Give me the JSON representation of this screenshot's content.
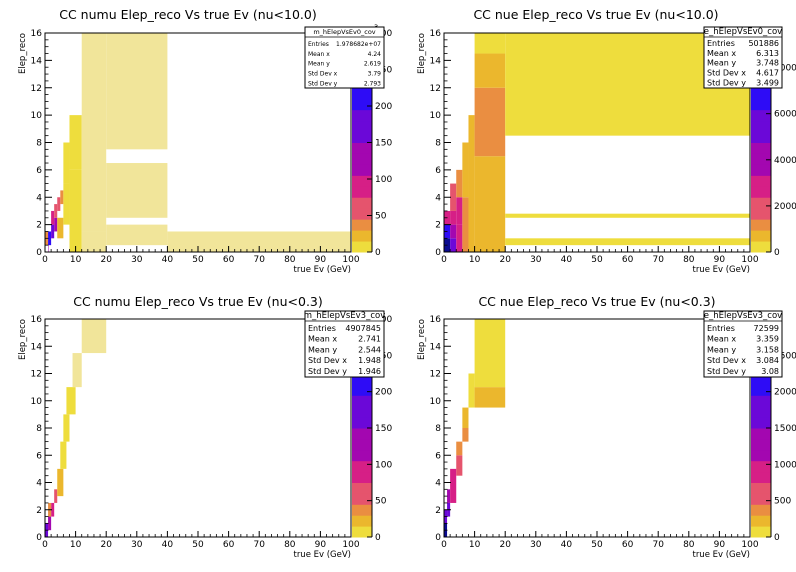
{
  "chart_data": [
    {
      "type": "heatmap",
      "title": "CC numu Elep_reco Vs true Ev (nu<10.0)",
      "xlabel": "true Ev (GeV)",
      "ylabel": "Elep_reco",
      "xlim": [
        0,
        100
      ],
      "ylim": [
        0,
        16
      ],
      "xticks": [
        0,
        10,
        20,
        30,
        40,
        50,
        60,
        70,
        80,
        90,
        100
      ],
      "yticks": [
        0,
        2,
        4,
        6,
        8,
        10,
        12,
        14,
        16
      ],
      "zticks": [
        0,
        50,
        100,
        150,
        200,
        250,
        300
      ],
      "zlim": [
        0,
        300
      ],
      "zexp": "3",
      "stats": {
        "name": "m_hElepVsEv0_cov",
        "rows": [
          [
            "Entries",
            "1.978682e+07"
          ],
          [
            "Mean x",
            "4.24"
          ],
          [
            "Mean y",
            "2.619"
          ],
          [
            "Std Dev x",
            "3.79"
          ],
          [
            "Std Dev y",
            "2.793"
          ]
        ]
      },
      "cells": [
        [
          1,
          0,
          1,
          0.5,
          120
        ],
        [
          0,
          0.5,
          1,
          1.5,
          40
        ],
        [
          1,
          0.5,
          2,
          1.5,
          210
        ],
        [
          2,
          1,
          3,
          2,
          160
        ],
        [
          3,
          1.5,
          4,
          2.5,
          110
        ],
        [
          2,
          2,
          3,
          3,
          80
        ],
        [
          3,
          2.5,
          4,
          3.5,
          70
        ],
        [
          4,
          3,
          5,
          4,
          50
        ],
        [
          5,
          3.5,
          6,
          4.5,
          30
        ],
        [
          4,
          1,
          6,
          2.5,
          15
        ],
        [
          6,
          2,
          8,
          5,
          10
        ],
        [
          6,
          5,
          8,
          8,
          6
        ],
        [
          8,
          0,
          12,
          6,
          4
        ],
        [
          8,
          6,
          12,
          10,
          8
        ],
        [
          12,
          0,
          20,
          1.5,
          2
        ],
        [
          12,
          1.5,
          20,
          16,
          1
        ],
        [
          20,
          7.5,
          40,
          16,
          1
        ],
        [
          20,
          2.5,
          40,
          6.5,
          0.5
        ],
        [
          20,
          0.5,
          40,
          2,
          1
        ],
        [
          40,
          0,
          100,
          1.5,
          0.5
        ]
      ]
    },
    {
      "type": "heatmap",
      "title": "CC nue Elep_reco Vs true Ev (nu<10.0)",
      "xlabel": "true Ev (GeV)",
      "ylabel": "Elep_reco",
      "xlim": [
        0,
        100
      ],
      "ylim": [
        0,
        16
      ],
      "xticks": [
        0,
        10,
        20,
        30,
        40,
        50,
        60,
        70,
        80,
        90,
        100
      ],
      "yticks": [
        0,
        2,
        4,
        6,
        8,
        10,
        12,
        14,
        16
      ],
      "zticks": [
        0,
        2000,
        4000,
        6000,
        8000
      ],
      "zlim": [
        0,
        9500
      ],
      "zexp": "",
      "stats": {
        "name": "e_hElepVsEv0_cov",
        "rows": [
          [
            "Entries",
            "501886"
          ],
          [
            "Mean x",
            "6.313"
          ],
          [
            "Mean y",
            "3.748"
          ],
          [
            "Std Dev x",
            "4.617"
          ],
          [
            "Std Dev y",
            "3.499"
          ]
        ]
      },
      "cells": [
        [
          0,
          0,
          2,
          1,
          9200
        ],
        [
          0,
          1,
          2,
          2,
          6500
        ],
        [
          2,
          0,
          4,
          1,
          5200
        ],
        [
          2,
          1,
          4,
          2,
          4200
        ],
        [
          2,
          2,
          4,
          3,
          3400
        ],
        [
          0,
          2,
          2,
          3,
          2500
        ],
        [
          4,
          0,
          6,
          2,
          3000
        ],
        [
          4,
          2,
          6,
          4,
          2400
        ],
        [
          2,
          3,
          4,
          5,
          1800
        ],
        [
          4,
          4,
          6,
          6,
          1200
        ],
        [
          6,
          0,
          8,
          4,
          1400
        ],
        [
          6,
          4,
          8,
          8,
          700
        ],
        [
          8,
          0,
          10,
          10,
          500
        ],
        [
          10,
          0,
          20,
          7,
          600
        ],
        [
          10,
          7,
          20,
          12,
          1000
        ],
        [
          10,
          12,
          20,
          14.5,
          650
        ],
        [
          10,
          14.5,
          20,
          16,
          150
        ],
        [
          20,
          8.5,
          100,
          16,
          250
        ],
        [
          20,
          0.5,
          100,
          1,
          200
        ],
        [
          20,
          2.5,
          100,
          2.8,
          150
        ]
      ]
    },
    {
      "type": "heatmap",
      "title": "CC numu Elep_reco Vs true Ev (nu<0.3)",
      "xlabel": "true Ev (GeV)",
      "ylabel": "Elep_reco",
      "xlim": [
        0,
        100
      ],
      "ylim": [
        0,
        16
      ],
      "xticks": [
        0,
        10,
        20,
        30,
        40,
        50,
        60,
        70,
        80,
        90,
        100
      ],
      "yticks": [
        0,
        2,
        4,
        6,
        8,
        10,
        12,
        14,
        16
      ],
      "zticks": [
        0,
        50,
        100,
        150,
        200,
        250,
        300
      ],
      "zlim": [
        0,
        300
      ],
      "zexp": "3",
      "stats": {
        "name": "m_hElepVsEv3_cov",
        "rows": [
          [
            "Entries",
            "4907845"
          ],
          [
            "Mean x",
            "2.741"
          ],
          [
            "Mean y",
            "2.544"
          ],
          [
            "Std Dev x",
            "1.948"
          ],
          [
            "Std Dev y",
            "1.946"
          ]
        ]
      },
      "cells": [
        [
          0,
          0,
          1,
          1,
          150
        ],
        [
          1,
          0.5,
          2,
          1.5,
          120
        ],
        [
          2,
          1.5,
          3,
          2.5,
          90
        ],
        [
          3,
          2.5,
          4,
          3.5,
          60
        ],
        [
          1,
          1.5,
          2,
          2.5,
          30
        ],
        [
          4,
          3,
          6,
          5,
          15
        ],
        [
          5,
          5,
          7,
          7,
          8
        ],
        [
          6,
          7,
          8,
          9,
          5
        ],
        [
          7,
          9,
          10,
          11,
          3
        ],
        [
          9,
          11,
          12,
          13.5,
          2
        ],
        [
          12,
          13.5,
          20,
          16,
          1
        ]
      ]
    },
    {
      "type": "heatmap",
      "title": "CC nue Elep_reco Vs true Ev (nu<0.3)",
      "xlabel": "true Ev (GeV)",
      "ylabel": "Elep_reco",
      "xlim": [
        0,
        100
      ],
      "ylim": [
        0,
        16
      ],
      "xticks": [
        0,
        10,
        20,
        30,
        40,
        50,
        60,
        70,
        80,
        90,
        100
      ],
      "yticks": [
        0,
        2,
        4,
        6,
        8,
        10,
        12,
        14,
        16
      ],
      "zticks": [
        0,
        500,
        1000,
        1500,
        2000,
        2500
      ],
      "zlim": [
        0,
        3000
      ],
      "zexp": "",
      "stats": {
        "name": "e_hElepVsEv3_cov",
        "rows": [
          [
            "Entries",
            "72599"
          ],
          [
            "Mean x",
            "3.359"
          ],
          [
            "Mean y",
            "3.158"
          ],
          [
            "Std Dev x",
            "3.084"
          ],
          [
            "Std Dev y",
            "3.08"
          ]
        ]
      },
      "cells": [
        [
          0,
          0,
          1,
          1,
          2800
        ],
        [
          0,
          1,
          1,
          2,
          1900
        ],
        [
          1,
          1.5,
          2,
          2.5,
          1700
        ],
        [
          1,
          2.5,
          2,
          3.5,
          1200
        ],
        [
          2,
          2.5,
          4,
          4,
          900
        ],
        [
          2,
          4,
          4,
          5,
          800
        ],
        [
          4,
          4.5,
          6,
          6,
          500
        ],
        [
          4,
          6,
          6,
          7,
          400
        ],
        [
          6,
          7,
          8,
          8,
          300
        ],
        [
          6,
          8,
          8,
          9.5,
          200
        ],
        [
          8,
          9.5,
          10,
          12,
          100
        ],
        [
          10,
          9.5,
          20,
          11,
          120
        ],
        [
          10,
          11,
          20,
          16,
          40
        ]
      ]
    }
  ]
}
